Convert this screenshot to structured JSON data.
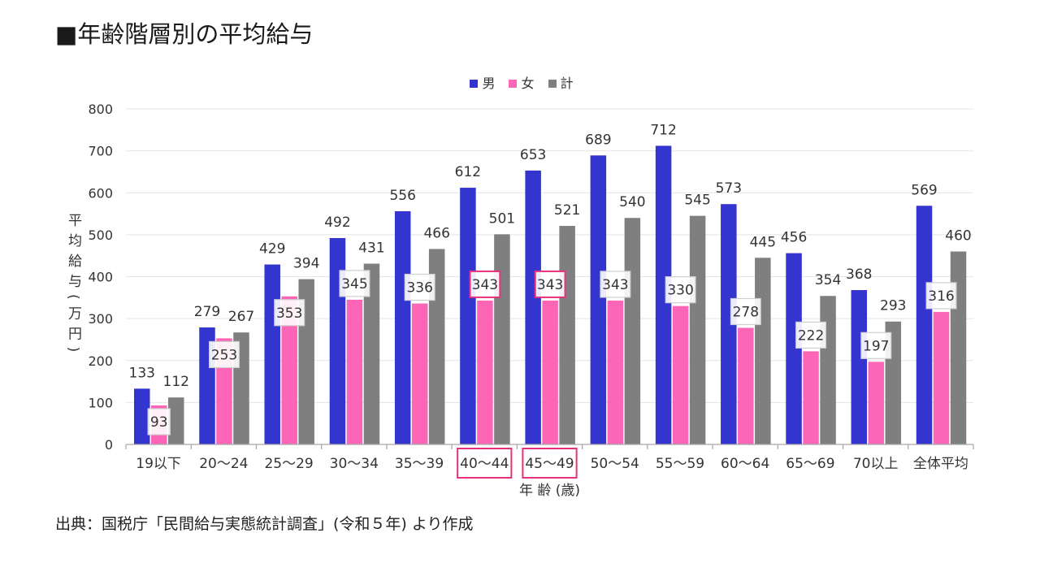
{
  "source": "出典：国税庁「民間給与実態統計調査」(令和５年) より作成",
  "chart_data": {
    "type": "bar",
    "title": "■年齢階層別の平均給与",
    "xlabel": "年 齢 (歳)",
    "ylabel": "平均給与(万円)",
    "categories": [
      "19以下",
      "20～24",
      "25～29",
      "30～34",
      "35～39",
      "40～44",
      "45～49",
      "50～54",
      "55～59",
      "60～64",
      "65～69",
      "70以上",
      "全体平均"
    ],
    "series": [
      {
        "name": "男",
        "color": "#3434cf",
        "values": [
          133,
          279,
          429,
          492,
          556,
          612,
          653,
          689,
          712,
          573,
          456,
          368,
          569
        ]
      },
      {
        "name": "女",
        "color": "#fd66b6",
        "values": [
          93,
          253,
          353,
          345,
          336,
          343,
          343,
          343,
          330,
          278,
          222,
          197,
          316
        ]
      },
      {
        "name": "計",
        "color": "#7f7f7f",
        "values": [
          112,
          267,
          394,
          431,
          466,
          501,
          521,
          540,
          545,
          445,
          354,
          293,
          460
        ]
      }
    ],
    "ylim": [
      0,
      800
    ],
    "yticks": [
      0,
      100,
      200,
      300,
      400,
      500,
      600,
      700,
      800
    ],
    "grid": true,
    "legend": "top-center",
    "data_labels": true,
    "highlighted_categories": [
      "40～44",
      "45～49"
    ],
    "highlight_color": "#e6317c"
  }
}
